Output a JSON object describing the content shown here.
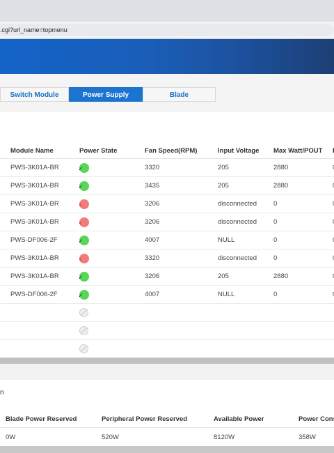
{
  "browser": {
    "url": ".cgi?url_name=topmenu"
  },
  "tabs": [
    {
      "label": "Switch Module",
      "active": false
    },
    {
      "label": "Power Supply",
      "active": true
    },
    {
      "label": "Blade",
      "active": false
    }
  ],
  "power_supply_table": {
    "columns": [
      "Module Name",
      "Power State",
      "Fan Speed(RPM)",
      "Input Voltage",
      "Max Watt/POUT",
      "I"
    ],
    "rows": [
      {
        "module": "PWS-3K01A-BR",
        "state": "ok",
        "state_icon": "ok-icon",
        "fan": "3320",
        "voltage": "205",
        "maxwatt": "2880",
        "extra": "0"
      },
      {
        "module": "PWS-3K01A-BR",
        "state": "ok",
        "state_icon": "ok-icon",
        "fan": "3435",
        "voltage": "205",
        "maxwatt": "2880",
        "extra": "0"
      },
      {
        "module": "PWS-3K01A-BR",
        "state": "fail",
        "state_icon": "fail-icon",
        "fan": "3206",
        "voltage": "disconnected",
        "maxwatt": "0",
        "extra": "0"
      },
      {
        "module": "PWS-3K01A-BR",
        "state": "fail",
        "state_icon": "fail-icon",
        "fan": "3206",
        "voltage": "disconnected",
        "maxwatt": "0",
        "extra": "0"
      },
      {
        "module": "PWS-DF006-2F",
        "state": "ok",
        "state_icon": "ok-icon",
        "fan": "4007",
        "voltage": "NULL",
        "maxwatt": "0",
        "extra": "0"
      },
      {
        "module": "PWS-3K01A-BR",
        "state": "fail",
        "state_icon": "fail-icon",
        "fan": "3320",
        "voltage": "disconnected",
        "maxwatt": "0",
        "extra": "0"
      },
      {
        "module": "PWS-3K01A-BR",
        "state": "ok",
        "state_icon": "ok-icon",
        "fan": "3206",
        "voltage": "205",
        "maxwatt": "2880",
        "extra": "0"
      },
      {
        "module": "PWS-DF006-2F",
        "state": "ok",
        "state_icon": "ok-icon",
        "fan": "4007",
        "voltage": "NULL",
        "maxwatt": "0",
        "extra": "0"
      },
      {
        "module": "",
        "state": "na",
        "state_icon": "not-installed-icon",
        "fan": "",
        "voltage": "",
        "maxwatt": "",
        "extra": ""
      },
      {
        "module": "",
        "state": "na",
        "state_icon": "not-installed-icon",
        "fan": "",
        "voltage": "",
        "maxwatt": "",
        "extra": ""
      },
      {
        "module": "",
        "state": "na",
        "state_icon": "not-installed-icon",
        "fan": "",
        "voltage": "",
        "maxwatt": "",
        "extra": ""
      }
    ]
  },
  "power_summary": {
    "section_title": "n",
    "columns": [
      "Blade Power Reserved",
      "Peripheral Power Reserved",
      "Available Power",
      "Power Cons"
    ],
    "values": [
      "0W",
      "520W",
      "8120W",
      "358W"
    ]
  },
  "colors": {
    "accent": "#1b74d0",
    "banner_start": "#1464c8",
    "banner_end": "#1d3f74",
    "state_ok": "#57d657",
    "state_fail": "#f07b7b"
  }
}
